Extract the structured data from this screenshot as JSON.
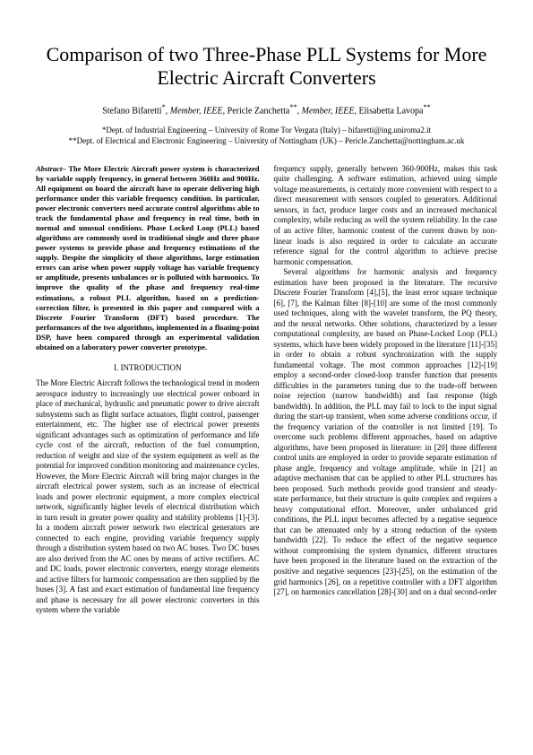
{
  "title": "Comparison of two Three-Phase PLL Systems for More Electric Aircraft Converters",
  "authors_line": {
    "a1_name": "Stefano Bifaretti",
    "a1_sup": "*",
    "m1": ", Member, IEEE, ",
    "a2_name": "Pericle Zanchetta",
    "a2_sup": "**",
    "m2": ", Member, IEEE, ",
    "a3_name": "Elisabetta Lavopa",
    "a3_sup": "**"
  },
  "affil": {
    "l1": "*Dept. of Industrial Engineering – University of Rome Tor Vergata (Italy) – bifaretti@ing.uniroma2.it",
    "l2": "**Dept. of Electrical and Electronic Engineering – University of Nottingham (UK) – Pericle.Zanchetta@nottingham.ac.uk"
  },
  "abstract_label": "Abstract– ",
  "abstract_text": "The More Electric Aircraft power system is characterized by variable supply frequency, in general between 360Hz and 900Hz. All equipment on board the aircraft have to operate delivering high performance under this variable frequency condition. In particular, power electronic converters need accurate control algorithms able to track the fundamental phase and frequency in real time, both in normal and unusual conditions. Phase Locked Loop (PLL) based algorithms are commonly used in traditional single and three phase power systems to provide phase and frequency estimations of the supply. Despite the simplicity of those algorithms, large estimation errors can arise when power supply voltage has variable frequency or amplitude, presents unbalances or is polluted with harmonics. To improve the quality of the phase and frequency real-time estimations, a robust PLL algorithm, based on a prediction-correction filter, is presented in this paper and compared with a Discrete Fourier Transform (DFT) based procedure. The performances of the two algorithms, implemented in a floating-point DSP, have been compared through an experimental validation obtained on a laboratory power converter prototype.",
  "section1_head": "I.      INTRODUCTION",
  "intro_para": "The More Electric Aircraft follows the technological trend in modern aerospace industry to increasingly use electrical power onboard in place of mechanical, hydraulic and pneumatic power to drive aircraft subsystems such as flight surface actuators, flight control, passenger entertainment, etc. The higher use of electrical power presents significant advantages such as optimization of performance and life cycle cost of the aircraft, reduction of the fuel consumption, reduction of weight and size of the system equipment as well as the potential for improved condition monitoring and maintenance cycles. However, the More Electric Aircraft will bring major changes in the aircraft electrical power system, such as an increase of electrical loads and power electronic equipment, a more complex electrical network, significantly higher levels of electrical distribution which in turn result in greater power quality and stability problems [1]-[3]. In a modern aircraft power network two electrical generators are connected to each engine, providing variable frequency supply through a distribution system based on two AC buses. Two DC buses are also derived from the AC ones by means of active rectifiers. AC and DC loads, power electronic converters, energy storage elements and active filters for harmonic compensation are then supplied by the buses [3]. A fast and exact estimation of fundamental line frequency and phase is necessary for all power electronic converters in this system where the variable",
  "col2_p1": "frequency supply, generally between 360-900Hz, makes this task quite challenging. A software estimation, achieved using simple voltage measurements, is certainly more convenient with respect to a direct measurement with sensors coupled to generators. Additional sensors, in fact, produce larger costs and an increased mechanical complexity, while reducing as well the system reliability. In the case of an active filter, harmonic content of the current drawn by non-linear loads is also required in order to calculate an accurate reference signal for the control algorithm to achieve precise harmonic compensation.",
  "col2_p2": "Several algorithms for harmonic analysis and frequency estimation have been proposed in the literature. The recursive Discrete Fourier Transform [4],[5], the least error square technique [6], [7], the Kalman filter [8]-[10] are some of the most commonly used techniques, along with the wavelet transform, the PQ theory, and the neural networks. Other solutions, characterized by a lesser computational complexity, are based on Phase-Locked Loop (PLL) systems, which have been widely proposed in the literature [11]-[35] in order to obtain a robust synchronization with the supply fundamental voltage. The most common approaches [12]-[19] employ a second-order closed-loop transfer function that presents difficulties in the parameters tuning due to the trade-off between noise rejection (narrow bandwidth) and fast response (high bandwidth). In addition, the PLL may fail to lock to the input signal during the start-up transient, when some adverse conditions occur, if the frequency variation of the controller is not limited [19]. To overcome such problems different approaches, based on adaptive algorithms, have been proposed in literature: in [20] three different control units are employed in order to provide separate estimation of phase angle, frequency and voltage amplitude, while in [21] an adaptive mechanism that can be applied to other PLL structures has been proposed. Such methods provide good transient and steady-state performance, but their structure is quite complex and requires a heavy computational effort. Moreover, under unbalanced grid conditions, the PLL input becomes affected by a negative sequence that can be attenuated only by a strong reduction of the system bandwidth [22]. To reduce the effect of the negative sequence without compromising the system dynamics, different structures have been proposed in the literature based on the extraction of the positive and negative sequences [23]-[25], on the estimation of the grid harmonics [26], on a repetitive controller with a DFT algorithm [27], on harmonics cancellation [28]-[30] and on a dual second-order"
}
